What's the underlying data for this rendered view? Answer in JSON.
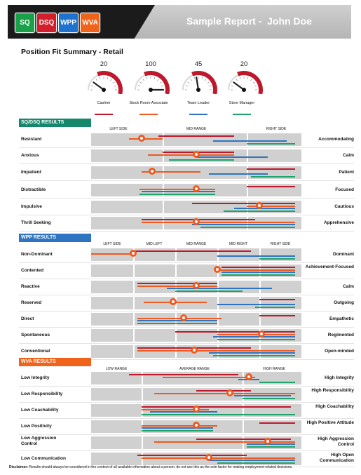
{
  "header": {
    "title": "Sample Report -  John Doe",
    "logos": [
      {
        "label": "SQ",
        "color": "#1aa049"
      },
      {
        "label": "DSQ",
        "color": "#d21f2b"
      },
      {
        "label": "WPP",
        "color": "#1e73cf"
      },
      {
        "label": "WVA",
        "color": "#f0631b"
      }
    ]
  },
  "summary": {
    "title": "Position Fit Summary - Retail",
    "gauges": [
      {
        "label": "Cashier",
        "value": "20",
        "level": 0.2,
        "color": "#c0182b"
      },
      {
        "label": "Stock Room Associate",
        "value": "100",
        "level": 1.0,
        "color": "#ee5a1f"
      },
      {
        "label": "Team Leader",
        "value": "45",
        "level": 0.45,
        "color": "#2f74c0"
      },
      {
        "label": "Store Manager",
        "value": "20",
        "level": 0.2,
        "color": "#1ea36b"
      }
    ]
  },
  "sections": [
    {
      "title": "SQ/DSQ RESULTS",
      "color": "#15876a",
      "columns": [
        "LEFT SIDE",
        "MID RANGE",
        "RIGHT SIDE"
      ],
      "rows": [
        {
          "left": "Resistant",
          "right": "Accommodating",
          "marker": 0.24,
          "bars": [
            {
              "c": "r",
              "s": 0.32,
              "e": 0.68
            },
            {
              "c": "o",
              "s": 0.18,
              "e": 0.34
            },
            {
              "c": "b",
              "s": 0.58,
              "e": 0.93
            },
            {
              "c": "g",
              "s": 0.74,
              "e": 0.97
            }
          ]
        },
        {
          "left": "Anxious",
          "right": "Calm",
          "marker": 0.5,
          "bars": [
            {
              "c": "r",
              "s": 0.34,
              "e": 0.68
            },
            {
              "c": "o",
              "s": 0.27,
              "e": 0.68
            },
            {
              "c": "b",
              "s": 0.5,
              "e": 0.84
            },
            {
              "c": "g",
              "s": 0.37,
              "e": 0.68
            }
          ]
        },
        {
          "left": "Impatient",
          "right": "Patient",
          "marker": 0.29,
          "bars": [
            {
              "c": "r",
              "s": 0.74,
              "e": 0.97
            },
            {
              "c": "o",
              "s": 0.24,
              "e": 0.52
            },
            {
              "c": "b",
              "s": 0.56,
              "e": 0.84
            },
            {
              "c": "g",
              "s": 0.76,
              "e": 0.97
            }
          ]
        },
        {
          "left": "Distractible",
          "right": "Focused",
          "marker": 0.5,
          "bars": [
            {
              "c": "r",
              "s": 0.74,
              "e": 0.97
            },
            {
              "c": "o",
              "s": 0.23,
              "e": 0.59
            },
            {
              "c": "b",
              "s": 0.24,
              "e": 0.59
            },
            {
              "c": "g",
              "s": 0.23,
              "e": 0.59
            }
          ]
        },
        {
          "left": "Impulsive",
          "right": "Cautious",
          "marker": 0.8,
          "bars": [
            {
              "c": "r",
              "s": 0.48,
              "e": 0.97
            },
            {
              "c": "o",
              "s": 0.74,
              "e": 0.97
            },
            {
              "c": "b",
              "s": 0.68,
              "e": 0.97
            },
            {
              "c": "g",
              "s": 0.63,
              "e": 0.97
            }
          ]
        },
        {
          "left": "Thrill Seeking",
          "right": "Apprehensive",
          "marker": 0.5,
          "bars": [
            {
              "c": "r",
              "s": 0.24,
              "e": 0.78
            },
            {
              "c": "o",
              "s": 0.24,
              "e": 0.97
            },
            {
              "c": "b",
              "s": 0.48,
              "e": 0.97
            },
            {
              "c": "g",
              "s": 0.52,
              "e": 0.97
            }
          ]
        }
      ]
    },
    {
      "title": "WPP RESULTS",
      "color": "#2f74c0",
      "columns": [
        "LEFT SIDE",
        "MID LEFT",
        "MID RANGE",
        "MID RIGHT",
        "RIGHT SIDE"
      ],
      "rows": [
        {
          "left": "Non-Dominant",
          "right": "Dominant",
          "marker": 0.2,
          "bars": [
            {
              "c": "r",
              "s": 0.2,
              "e": 0.76
            },
            {
              "c": "o",
              "s": 0.0,
              "e": 0.2
            },
            {
              "c": "b",
              "s": 0.6,
              "e": 0.97
            },
            {
              "c": "g",
              "s": 0.8,
              "e": 0.97
            }
          ]
        },
        {
          "left": "Contented",
          "right": "Achievement-Focused",
          "marker": 0.6,
          "bars": [
            {
              "c": "r",
              "s": 0.62,
              "e": 0.97
            },
            {
              "c": "o",
              "s": 0.6,
              "e": 0.97
            },
            {
              "c": "b",
              "s": 0.62,
              "e": 0.97
            },
            {
              "c": "g",
              "s": 0.62,
              "e": 0.97
            }
          ]
        },
        {
          "left": "Reactive",
          "right": "Calm",
          "marker": 0.5,
          "bars": [
            {
              "c": "r",
              "s": 0.22,
              "e": 0.6
            },
            {
              "c": "o",
              "s": 0.22,
              "e": 0.6
            },
            {
              "c": "b",
              "s": 0.36,
              "e": 0.86
            },
            {
              "c": "g",
              "s": 0.4,
              "e": 0.72
            }
          ]
        },
        {
          "left": "Reserved",
          "right": "Outgoing",
          "marker": 0.39,
          "bars": [
            {
              "c": "r",
              "s": 0.8,
              "e": 0.97
            },
            {
              "c": "o",
              "s": 0.25,
              "e": 0.55
            },
            {
              "c": "b",
              "s": 0.6,
              "e": 0.97
            },
            {
              "c": "g",
              "s": 0.78,
              "e": 0.97
            }
          ]
        },
        {
          "left": "Direct",
          "right": "Empathetic",
          "marker": 0.44,
          "bars": [
            {
              "c": "r",
              "s": 0.8,
              "e": 0.97
            },
            {
              "c": "o",
              "s": 0.22,
              "e": 0.62
            },
            {
              "c": "b",
              "s": 0.22,
              "e": 0.6
            },
            {
              "c": "g",
              "s": 0.22,
              "e": 0.6
            }
          ]
        },
        {
          "left": "Spontaneous",
          "right": "Regimented",
          "marker": 0.81,
          "bars": [
            {
              "c": "r",
              "s": 0.4,
              "e": 0.97
            },
            {
              "c": "o",
              "s": 0.6,
              "e": 0.97
            },
            {
              "c": "b",
              "s": 0.58,
              "e": 0.97
            },
            {
              "c": "g",
              "s": 0.6,
              "e": 0.97
            }
          ]
        },
        {
          "left": "Conventional",
          "right": "Open-minded",
          "marker": 0.49,
          "bars": [
            {
              "c": "r",
              "s": 0.22,
              "e": 0.76
            },
            {
              "c": "o",
              "s": 0.22,
              "e": 0.97
            },
            {
              "c": "b",
              "s": 0.56,
              "e": 0.97
            },
            {
              "c": "g",
              "s": 0.58,
              "e": 0.97
            }
          ]
        }
      ]
    },
    {
      "title": "WVA RESULTS",
      "color": "#f0631b",
      "columns": [
        "LOW RANGE",
        "AVERAGE RANGE",
        "HIGH RANGE"
      ],
      "rows": [
        {
          "left": "Low Integrity",
          "right": "High Integrity",
          "marker": 0.75,
          "bars": [
            {
              "c": "r",
              "s": 0.18,
              "e": 0.7
            },
            {
              "c": "o",
              "s": 0.34,
              "e": 0.78
            },
            {
              "c": "b",
              "s": 0.7,
              "e": 0.8
            },
            {
              "c": "g",
              "s": 0.8,
              "e": 0.97
            }
          ]
        },
        {
          "left": "Low Responsibility",
          "right": "High Responsibility",
          "marker": 0.66,
          "bars": [
            {
              "c": "r",
              "s": 0.5,
              "e": 0.76
            },
            {
              "c": "o",
              "s": 0.3,
              "e": 0.97
            },
            {
              "c": "b",
              "s": 0.68,
              "e": 0.95
            },
            {
              "c": "g",
              "s": 0.72,
              "e": 0.97
            }
          ]
        },
        {
          "left": "Low Coachability",
          "right": "High Coachability",
          "marker": 0.5,
          "bars": [
            {
              "c": "r",
              "s": 0.24,
              "e": 0.95
            },
            {
              "c": "o",
              "s": 0.24,
              "e": 0.56
            },
            {
              "c": "b",
              "s": 0.28,
              "e": 0.6
            },
            {
              "c": "g",
              "s": 0.24,
              "e": 0.97
            }
          ]
        },
        {
          "left": "Low Positivity",
          "right": "High Positive Attitude",
          "marker": 0.5,
          "bars": [
            {
              "c": "r",
              "s": 0.8,
              "e": 0.97
            },
            {
              "c": "o",
              "s": 0.24,
              "e": 0.6
            },
            {
              "c": "b",
              "s": 0.24,
              "e": 0.58
            },
            {
              "c": "g",
              "s": 0.24,
              "e": 0.58
            }
          ]
        },
        {
          "left": "Low Aggression Control",
          "right": "High Aggression Control",
          "marker": 0.84,
          "bars": [
            {
              "c": "r",
              "s": 0.5,
              "e": 0.95
            },
            {
              "c": "o",
              "s": 0.3,
              "e": 0.97
            },
            {
              "c": "b",
              "s": 0.74,
              "e": 0.97
            },
            {
              "c": "g",
              "s": 0.74,
              "e": 0.97
            }
          ]
        },
        {
          "left": "Low Communication",
          "right": "High Open Communication",
          "marker": 0.56,
          "bars": [
            {
              "c": "r",
              "s": 0.22,
              "e": 0.74
            },
            {
              "c": "o",
              "s": 0.24,
              "e": 0.97
            },
            {
              "c": "b",
              "s": 0.56,
              "e": 0.97
            },
            {
              "c": "g",
              "s": 0.6,
              "e": 0.97
            }
          ]
        }
      ]
    }
  ],
  "bar_colors": {
    "r": "#c0182b",
    "o": "#ee5a1f",
    "b": "#2f74c0",
    "g": "#1ea36b"
  },
  "disclaimer": {
    "label": "Disclaimer:",
    "text": " Results should always be considered in the context of all available information about a person; do not use this as the sole factor for making employment-related decisions."
  }
}
